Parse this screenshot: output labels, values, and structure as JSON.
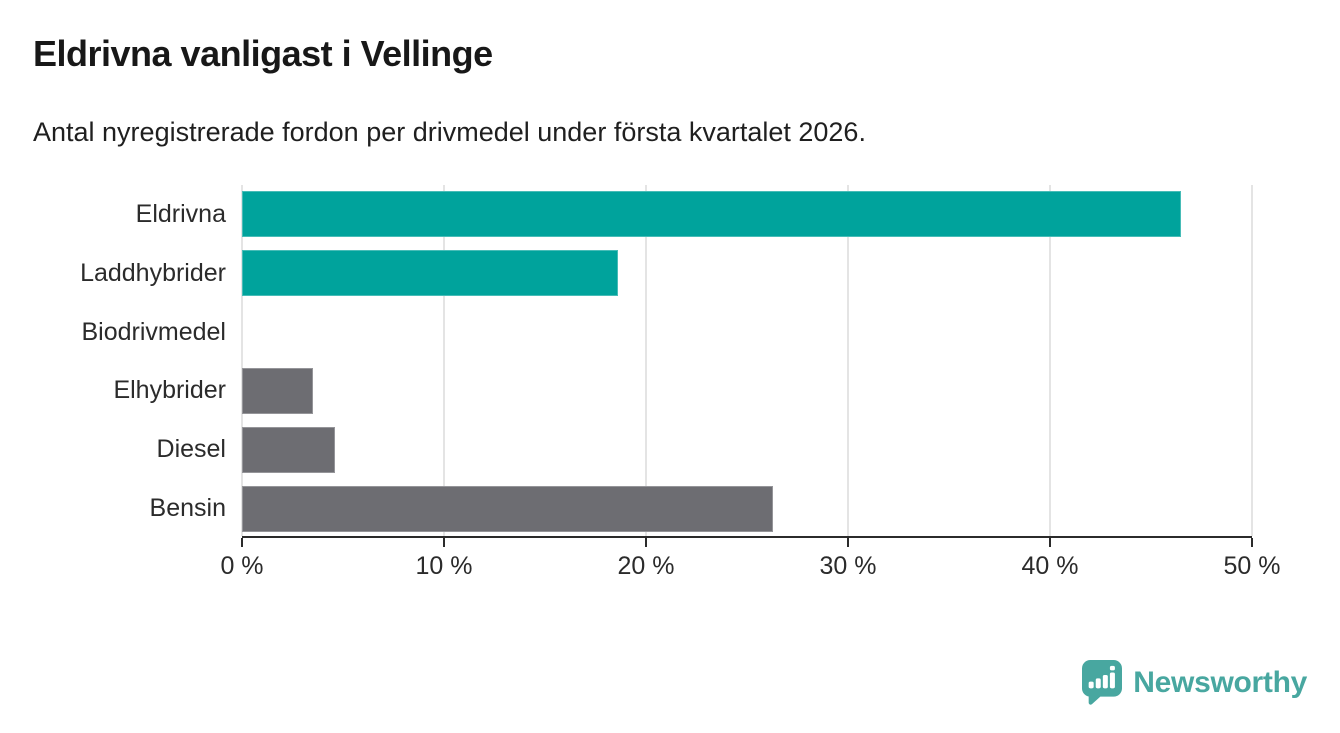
{
  "header": {
    "title": "Eldrivna vanligast i Vellinge",
    "subtitle": "Antal nyregistrerade fordon per drivmedel under första kvartalet 2026."
  },
  "chart_data": {
    "type": "bar",
    "orientation": "horizontal",
    "title": "Eldrivna vanligast i Vellinge",
    "subtitle": "Antal nyregistrerade fordon per drivmedel under första kvartalet 2026.",
    "categories": [
      "Eldrivna",
      "Laddhybrider",
      "Biodrivmedel",
      "Elhybrider",
      "Diesel",
      "Bensin"
    ],
    "values": [
      46.5,
      18.6,
      0,
      3.5,
      4.6,
      26.3
    ],
    "unit": "%",
    "bar_colors": [
      "#00a39c",
      "#00a39c",
      "#6d6d72",
      "#6d6d72",
      "#6d6d72",
      "#6d6d72"
    ],
    "xlim": [
      0,
      50
    ],
    "x_ticks": [
      "0 %",
      "10 %",
      "20 %",
      "30 %",
      "40 %",
      "50 %"
    ],
    "x_tick_values": [
      0,
      10,
      20,
      30,
      40,
      50
    ],
    "xlabel": "",
    "ylabel": "",
    "grid": true,
    "legend": false
  },
  "colors": {
    "highlight_teal": "#00a39c",
    "neutral_gray": "#6d6d72",
    "axis": "#2b2b2b",
    "gridline": "#e4e4e4",
    "logo_teal": "#48a7a0"
  },
  "footer": {
    "brand": "Newsworthy"
  }
}
